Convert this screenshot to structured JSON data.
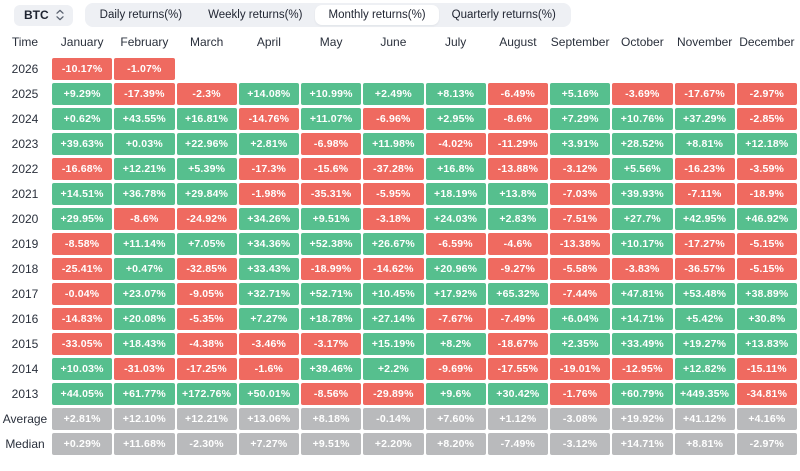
{
  "toolbar": {
    "coin": "BTC",
    "tabs": [
      {
        "label": "Daily returns(%)",
        "active": false
      },
      {
        "label": "Weekly returns(%)",
        "active": false
      },
      {
        "label": "Monthly returns(%)",
        "active": true
      },
      {
        "label": "Quarterly returns(%)",
        "active": false
      }
    ]
  },
  "colors": {
    "positive": "#56bf8e",
    "negative": "#ef6a60",
    "neutral": "#b9babc"
  },
  "table": {
    "time_header": "Time",
    "months": [
      "January",
      "February",
      "March",
      "April",
      "May",
      "June",
      "July",
      "August",
      "September",
      "October",
      "November",
      "December"
    ],
    "rows": [
      {
        "label": "2026",
        "type": "year",
        "values": [
          "-10.17%",
          "-1.07%",
          null,
          null,
          null,
          null,
          null,
          null,
          null,
          null,
          null,
          null
        ]
      },
      {
        "label": "2025",
        "type": "year",
        "values": [
          "+9.29%",
          "-17.39%",
          "-2.3%",
          "+14.08%",
          "+10.99%",
          "+2.49%",
          "+8.13%",
          "-6.49%",
          "+5.16%",
          "-3.69%",
          "-17.67%",
          "-2.97%"
        ]
      },
      {
        "label": "2024",
        "type": "year",
        "values": [
          "+0.62%",
          "+43.55%",
          "+16.81%",
          "-14.76%",
          "+11.07%",
          "-6.96%",
          "+2.95%",
          "-8.6%",
          "+7.29%",
          "+10.76%",
          "+37.29%",
          "-2.85%"
        ]
      },
      {
        "label": "2023",
        "type": "year",
        "values": [
          "+39.63%",
          "+0.03%",
          "+22.96%",
          "+2.81%",
          "-6.98%",
          "+11.98%",
          "-4.02%",
          "-11.29%",
          "+3.91%",
          "+28.52%",
          "+8.81%",
          "+12.18%"
        ]
      },
      {
        "label": "2022",
        "type": "year",
        "values": [
          "-16.68%",
          "+12.21%",
          "+5.39%",
          "-17.3%",
          "-15.6%",
          "-37.28%",
          "+16.8%",
          "-13.88%",
          "-3.12%",
          "+5.56%",
          "-16.23%",
          "-3.59%"
        ]
      },
      {
        "label": "2021",
        "type": "year",
        "values": [
          "+14.51%",
          "+36.78%",
          "+29.84%",
          "-1.98%",
          "-35.31%",
          "-5.95%",
          "+18.19%",
          "+13.8%",
          "-7.03%",
          "+39.93%",
          "-7.11%",
          "-18.9%"
        ]
      },
      {
        "label": "2020",
        "type": "year",
        "values": [
          "+29.95%",
          "-8.6%",
          "-24.92%",
          "+34.26%",
          "+9.51%",
          "-3.18%",
          "+24.03%",
          "+2.83%",
          "-7.51%",
          "+27.7%",
          "+42.95%",
          "+46.92%"
        ]
      },
      {
        "label": "2019",
        "type": "year",
        "values": [
          "-8.58%",
          "+11.14%",
          "+7.05%",
          "+34.36%",
          "+52.38%",
          "+26.67%",
          "-6.59%",
          "-4.6%",
          "-13.38%",
          "+10.17%",
          "-17.27%",
          "-5.15%"
        ]
      },
      {
        "label": "2018",
        "type": "year",
        "values": [
          "-25.41%",
          "+0.47%",
          "-32.85%",
          "+33.43%",
          "-18.99%",
          "-14.62%",
          "+20.96%",
          "-9.27%",
          "-5.58%",
          "-3.83%",
          "-36.57%",
          "-5.15%"
        ]
      },
      {
        "label": "2017",
        "type": "year",
        "values": [
          "-0.04%",
          "+23.07%",
          "-9.05%",
          "+32.71%",
          "+52.71%",
          "+10.45%",
          "+17.92%",
          "+65.32%",
          "-7.44%",
          "+47.81%",
          "+53.48%",
          "+38.89%"
        ]
      },
      {
        "label": "2016",
        "type": "year",
        "values": [
          "-14.83%",
          "+20.08%",
          "-5.35%",
          "+7.27%",
          "+18.78%",
          "+27.14%",
          "-7.67%",
          "-7.49%",
          "+6.04%",
          "+14.71%",
          "+5.42%",
          "+30.8%"
        ]
      },
      {
        "label": "2015",
        "type": "year",
        "values": [
          "-33.05%",
          "+18.43%",
          "-4.38%",
          "-3.46%",
          "-3.17%",
          "+15.19%",
          "+8.2%",
          "-18.67%",
          "+2.35%",
          "+33.49%",
          "+19.27%",
          "+13.83%"
        ]
      },
      {
        "label": "2014",
        "type": "year",
        "values": [
          "+10.03%",
          "-31.03%",
          "-17.25%",
          "-1.6%",
          "+39.46%",
          "+2.2%",
          "-9.69%",
          "-17.55%",
          "-19.01%",
          "-12.95%",
          "+12.82%",
          "-15.11%"
        ]
      },
      {
        "label": "2013",
        "type": "year",
        "values": [
          "+44.05%",
          "+61.77%",
          "+172.76%",
          "+50.01%",
          "-8.56%",
          "-29.89%",
          "+9.6%",
          "+30.42%",
          "-1.76%",
          "+60.79%",
          "+449.35%",
          "-34.81%"
        ]
      },
      {
        "label": "Average",
        "type": "summary",
        "values": [
          "+2.81%",
          "+12.10%",
          "+12.21%",
          "+13.06%",
          "+8.18%",
          "-0.14%",
          "+7.60%",
          "+1.12%",
          "-3.08%",
          "+19.92%",
          "+41.12%",
          "+4.16%"
        ]
      },
      {
        "label": "Median",
        "type": "summary",
        "values": [
          "+0.29%",
          "+11.68%",
          "-2.30%",
          "+7.27%",
          "+9.51%",
          "+2.20%",
          "+8.20%",
          "-7.49%",
          "-3.12%",
          "+14.71%",
          "+8.81%",
          "-2.97%"
        ]
      }
    ]
  }
}
